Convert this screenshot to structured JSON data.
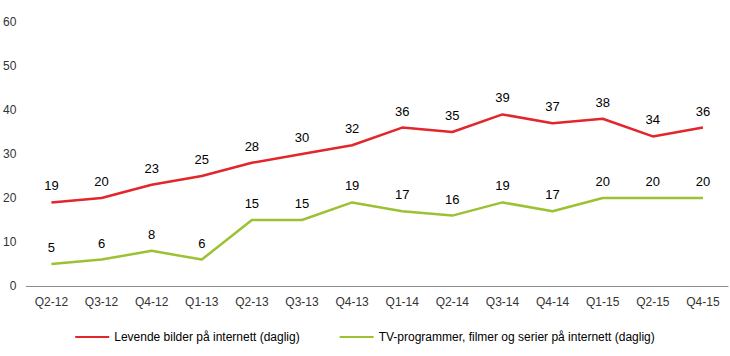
{
  "chart_data": {
    "type": "line",
    "categories": [
      "Q2-12",
      "Q3-12",
      "Q4-12",
      "Q1-13",
      "Q2-13",
      "Q3-13",
      "Q4-13",
      "Q1-14",
      "Q2-14",
      "Q3-14",
      "Q4-14",
      "Q1-15",
      "Q2-15",
      "Q4-15"
    ],
    "series": [
      {
        "name": "Levende bilder på internett (daglig)",
        "color": "#e3262b",
        "values": [
          19,
          20,
          23,
          25,
          28,
          30,
          32,
          36,
          35,
          39,
          37,
          38,
          34,
          36
        ]
      },
      {
        "name": "TV-programmer, filmer og serier på internett (daglig)",
        "color": "#9bc232",
        "values": [
          5,
          6,
          8,
          6,
          15,
          15,
          19,
          17,
          16,
          19,
          17,
          20,
          20,
          20
        ]
      }
    ],
    "ylim": [
      0,
      60
    ],
    "yticks": [
      0,
      10,
      20,
      30,
      40,
      50,
      60
    ],
    "grid": false,
    "legend": "bottom",
    "data_labels": true,
    "marker": "none"
  }
}
